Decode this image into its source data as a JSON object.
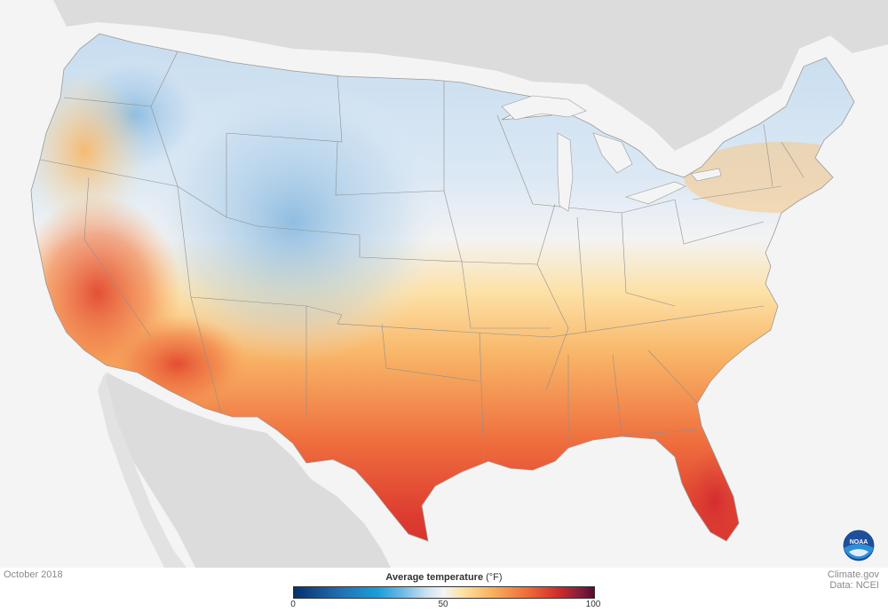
{
  "map": {
    "date_label": "October 2018",
    "credit_site": "Climate.gov",
    "credit_data": "Data: NCEI",
    "legend": {
      "title": "Average temperature",
      "unit": "(°F)",
      "ticks": [
        "0",
        "50",
        "100"
      ],
      "range": [
        0,
        100
      ],
      "colors": [
        "#08306b",
        "#2171b5",
        "#6db9e4",
        "#f4f4f4",
        "#f8b15e",
        "#ef6a3a",
        "#d12c2c",
        "#5a0a2e"
      ]
    },
    "logo": {
      "icon": "noaa-logo",
      "text": "NOAA"
    },
    "background_land_color": "#dcdcdc",
    "ocean_color": "#f4f4f4"
  }
}
